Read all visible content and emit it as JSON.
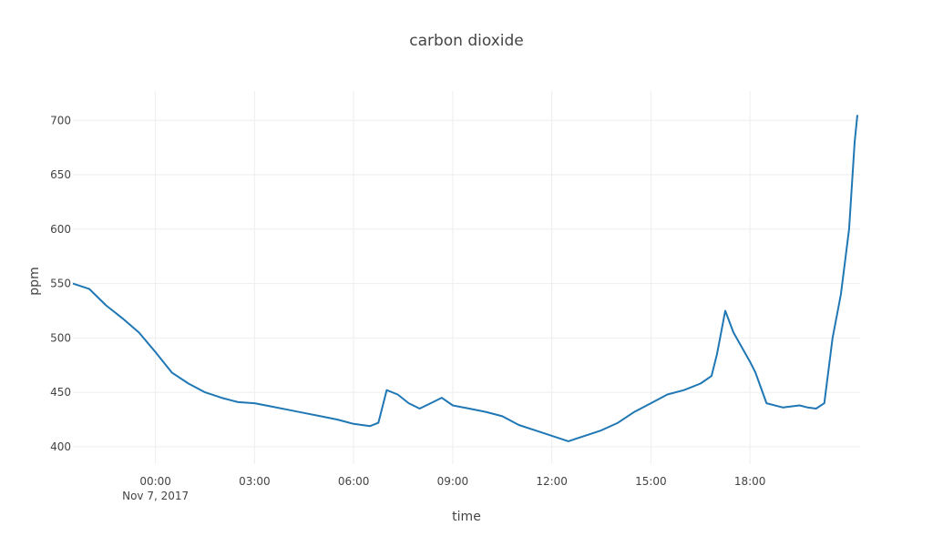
{
  "chart_data": {
    "type": "line",
    "title": "carbon dioxide",
    "xlabel": "time",
    "ylabel": "ppm",
    "line_color": "#1f77b4",
    "grid": true,
    "legend": "none",
    "x_range": [
      "2017-11-06T21:30:00",
      "2017-11-07T21:20:00"
    ],
    "y_range": [
      384,
      727
    ],
    "x_ticks": [
      {
        "t": "2017-11-07T00:00:00",
        "label": "00:00",
        "sublabel": "Nov 7, 2017"
      },
      {
        "t": "2017-11-07T03:00:00",
        "label": "03:00"
      },
      {
        "t": "2017-11-07T06:00:00",
        "label": "06:00"
      },
      {
        "t": "2017-11-07T09:00:00",
        "label": "09:00"
      },
      {
        "t": "2017-11-07T12:00:00",
        "label": "12:00"
      },
      {
        "t": "2017-11-07T15:00:00",
        "label": "15:00"
      },
      {
        "t": "2017-11-07T18:00:00",
        "label": "18:00"
      }
    ],
    "y_ticks": [
      {
        "v": 400,
        "label": "400"
      },
      {
        "v": 450,
        "label": "450"
      },
      {
        "v": 500,
        "label": "500"
      },
      {
        "v": 550,
        "label": "550"
      },
      {
        "v": 600,
        "label": "600"
      },
      {
        "v": 650,
        "label": "650"
      },
      {
        "v": 700,
        "label": "700"
      }
    ],
    "series": [
      {
        "x": [
          "2017-11-06T21:30:00",
          "2017-11-06T22:00:00",
          "2017-11-06T22:30:00",
          "2017-11-06T23:00:00",
          "2017-11-06T23:30:00",
          "2017-11-07T00:00:00",
          "2017-11-07T00:30:00",
          "2017-11-07T01:00:00",
          "2017-11-07T01:30:00",
          "2017-11-07T02:00:00",
          "2017-11-07T02:30:00",
          "2017-11-07T03:00:00",
          "2017-11-07T03:30:00",
          "2017-11-07T04:00:00",
          "2017-11-07T04:30:00",
          "2017-11-07T05:00:00",
          "2017-11-07T05:30:00",
          "2017-11-07T06:00:00",
          "2017-11-07T06:30:00",
          "2017-11-07T06:45:00",
          "2017-11-07T07:00:00",
          "2017-11-07T07:20:00",
          "2017-11-07T07:40:00",
          "2017-11-07T08:00:00",
          "2017-11-07T08:20:00",
          "2017-11-07T08:40:00",
          "2017-11-07T09:00:00",
          "2017-11-07T09:30:00",
          "2017-11-07T10:00:00",
          "2017-11-07T10:30:00",
          "2017-11-07T11:00:00",
          "2017-11-07T11:30:00",
          "2017-11-07T12:00:00",
          "2017-11-07T12:30:00",
          "2017-11-07T13:00:00",
          "2017-11-07T13:30:00",
          "2017-11-07T14:00:00",
          "2017-11-07T14:30:00",
          "2017-11-07T15:00:00",
          "2017-11-07T15:30:00",
          "2017-11-07T16:00:00",
          "2017-11-07T16:30:00",
          "2017-11-07T16:50:00",
          "2017-11-07T17:00:00",
          "2017-11-07T17:15:00",
          "2017-11-07T17:30:00",
          "2017-11-07T18:00:00",
          "2017-11-07T18:10:00",
          "2017-11-07T18:30:00",
          "2017-11-07T19:00:00",
          "2017-11-07T19:30:00",
          "2017-11-07T19:45:00",
          "2017-11-07T20:00:00",
          "2017-11-07T20:15:00",
          "2017-11-07T20:30:00",
          "2017-11-07T20:45:00",
          "2017-11-07T21:00:00",
          "2017-11-07T21:10:00",
          "2017-11-07T21:15:00"
        ],
        "values": [
          550,
          545,
          530,
          518,
          505,
          487,
          468,
          458,
          450,
          445,
          441,
          440,
          437,
          434,
          431,
          428,
          425,
          421,
          419,
          422,
          452,
          448,
          440,
          435,
          440,
          445,
          438,
          435,
          432,
          428,
          420,
          415,
          410,
          405,
          410,
          415,
          422,
          432,
          440,
          448,
          452,
          458,
          465,
          485,
          525,
          505,
          478,
          468,
          440,
          436,
          438,
          436,
          435,
          440,
          500,
          540,
          600,
          680,
          705
        ]
      }
    ]
  }
}
